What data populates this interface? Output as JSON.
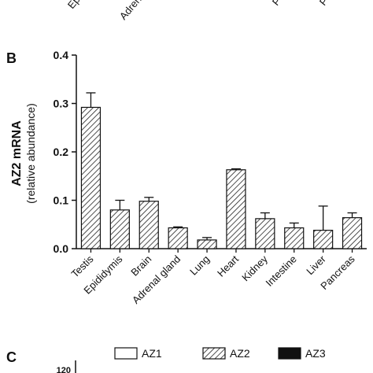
{
  "top_panel_labels": [
    "Ep",
    "Adren",
    "P",
    "P"
  ],
  "panel_b": {
    "letter": "B",
    "ylabel": "AZ2 mRNA",
    "ylabel_sub": "(relative abundance)"
  },
  "panel_c": {
    "letter": "C",
    "ytick_partial": "120"
  },
  "legend": [
    {
      "name": "AZ1",
      "style": "open"
    },
    {
      "name": "AZ2",
      "style": "hatched"
    },
    {
      "name": "AZ3",
      "style": "filled"
    }
  ],
  "chart_data": {
    "type": "bar",
    "categories": [
      "Testis",
      "Epididymis",
      "Brain",
      "Adrenal gland",
      "Lung",
      "Heart",
      "Kidney",
      "Intestine",
      "Liver",
      "Pancreas"
    ],
    "values": [
      0.292,
      0.08,
      0.098,
      0.043,
      0.018,
      0.163,
      0.062,
      0.043,
      0.038,
      0.064
    ],
    "errors": [
      0.03,
      0.02,
      0.008,
      0.002,
      0.005,
      0.002,
      0.012,
      0.01,
      0.05,
      0.01
    ],
    "title": "",
    "xlabel": "",
    "ylabel": "AZ2 mRNA (relative abundance)",
    "ylim": [
      0,
      0.4
    ],
    "yticks": [
      "0.0",
      "0.1",
      "0.2",
      "0.3",
      "0.4"
    ],
    "pattern": "hatched"
  }
}
